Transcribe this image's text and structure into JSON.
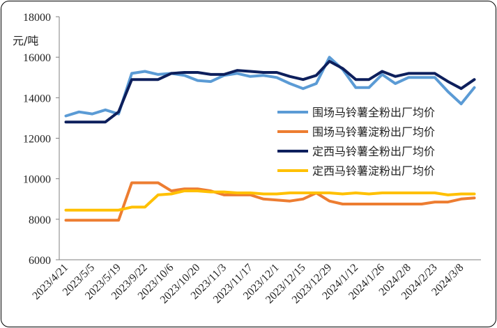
{
  "chart_data": {
    "type": "line",
    "unit_label": "元/吨",
    "ylim": [
      6000,
      18000
    ],
    "yticks": [
      6000,
      8000,
      10000,
      12000,
      14000,
      16000,
      18000
    ],
    "grid": false,
    "legend_position": "right",
    "x": [
      "2023/4/21",
      "2023/4/28",
      "2023/5/5",
      "2023/5/12",
      "2023/5/19",
      "2023/9/15",
      "2023/9/22",
      "2023/9/29",
      "2023/10/6",
      "2023/10/13",
      "2023/10/20",
      "2023/10/27",
      "2023/11/3",
      "2023/11/10",
      "2023/11/17",
      "2023/11/24",
      "2023/12/1",
      "2023/12/8",
      "2023/12/15",
      "2023/12/22",
      "2023/12/29",
      "2024/1/5",
      "2024/1/12",
      "2024/1/19",
      "2024/1/26",
      "2024/2/2",
      "2024/2/8",
      "2024/2/16",
      "2024/2/23",
      "2024/3/1",
      "2024/3/8",
      "2024/3/15"
    ],
    "x_tick_labels": [
      "2023/4/21",
      "2023/5/5",
      "2023/5/19",
      "2023/9/22",
      "2023/10/6",
      "2023/10/20",
      "2023/11/3",
      "2023/11/17",
      "2023/12/1",
      "2023/12/15",
      "2023/12/29",
      "2024/1/12",
      "2024/1/26",
      "2024/2/8",
      "2024/2/23",
      "2024/3/8"
    ],
    "series": [
      {
        "name": "围场马铃薯全粉出厂均价",
        "color": "#5B9BD5",
        "values": [
          13100,
          13300,
          13200,
          13400,
          13200,
          15200,
          15300,
          15150,
          15200,
          15100,
          14850,
          14800,
          15100,
          15200,
          15050,
          15100,
          15000,
          14700,
          14450,
          14700,
          16000,
          15400,
          14500,
          14500,
          15150,
          14700,
          15000,
          15000,
          15000,
          14300,
          13700,
          14500
        ]
      },
      {
        "name": "围场马铃薯淀粉出厂均价",
        "color": "#ED7D31",
        "values": [
          7950,
          7950,
          7950,
          7950,
          7950,
          9800,
          9800,
          9800,
          9400,
          9500,
          9500,
          9400,
          9200,
          9200,
          9200,
          9000,
          8950,
          8900,
          9000,
          9300,
          8900,
          8750,
          8750,
          8750,
          8750,
          8750,
          8750,
          8750,
          8850,
          8850,
          9000,
          9050
        ]
      },
      {
        "name": "定西马铃薯全粉出厂均价",
        "color": "#0D1F5C",
        "values": [
          12800,
          12800,
          12800,
          12800,
          13300,
          14900,
          14900,
          14900,
          15200,
          15250,
          15250,
          15150,
          15150,
          15350,
          15300,
          15250,
          15250,
          15050,
          14900,
          15100,
          15800,
          15450,
          14900,
          14900,
          15300,
          15050,
          15200,
          15200,
          15200,
          14800,
          14450,
          14900
        ]
      },
      {
        "name": "定西马铃薯淀粉出厂均价",
        "color": "#FFC000",
        "values": [
          8450,
          8450,
          8450,
          8450,
          8450,
          8600,
          8600,
          9200,
          9250,
          9400,
          9400,
          9350,
          9350,
          9300,
          9300,
          9250,
          9250,
          9300,
          9300,
          9300,
          9300,
          9250,
          9300,
          9250,
          9300,
          9300,
          9300,
          9300,
          9300,
          9200,
          9250,
          9250
        ]
      }
    ]
  }
}
